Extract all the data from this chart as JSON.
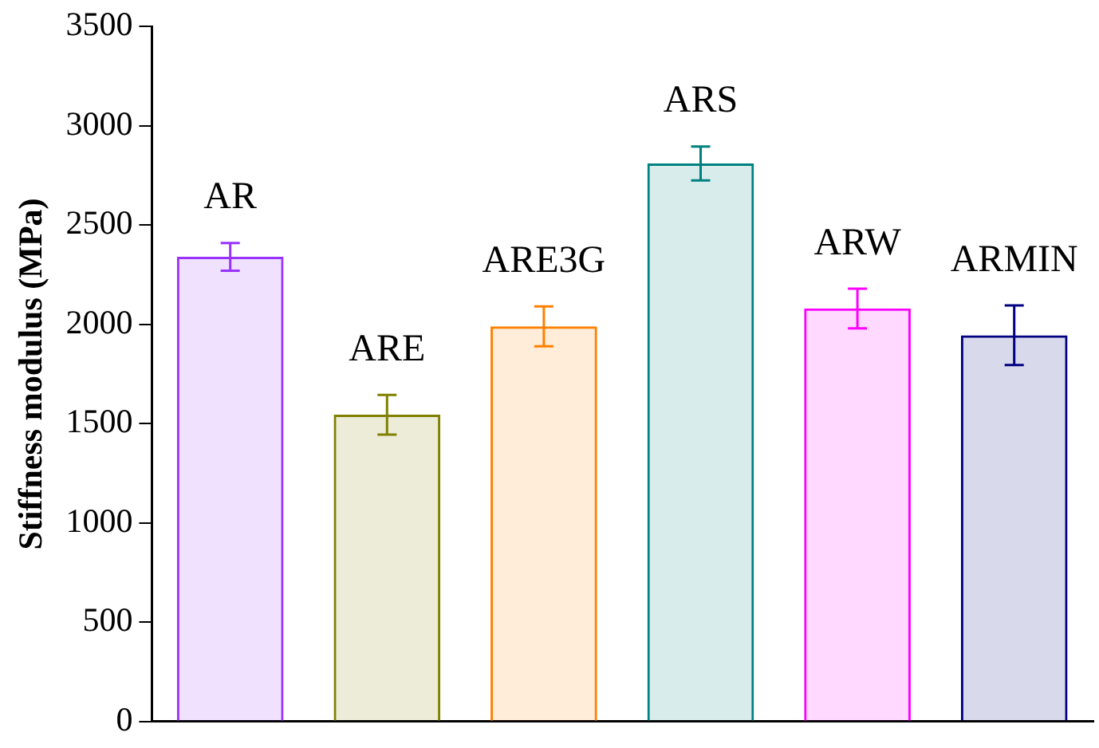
{
  "chart_data": {
    "type": "bar",
    "ylabel": "Stiffness modulus (MPa)",
    "categories": [
      "AR",
      "ARE",
      "ARE3G",
      "ARS",
      "ARW",
      "ARMIN"
    ],
    "values": [
      2340,
      1545,
      1990,
      2810,
      2080,
      1945
    ],
    "errors": [
      70,
      100,
      100,
      85,
      100,
      150
    ],
    "colors": [
      "#9933ff",
      "#808000",
      "#ff8000",
      "#008080",
      "#ff00ff",
      "#000080"
    ],
    "ylim": [
      0,
      3500
    ],
    "yticks": [
      0,
      500,
      1000,
      1500,
      2000,
      2500,
      3000,
      3500
    ],
    "grid": false,
    "legend": false,
    "tick_labels": "y"
  }
}
